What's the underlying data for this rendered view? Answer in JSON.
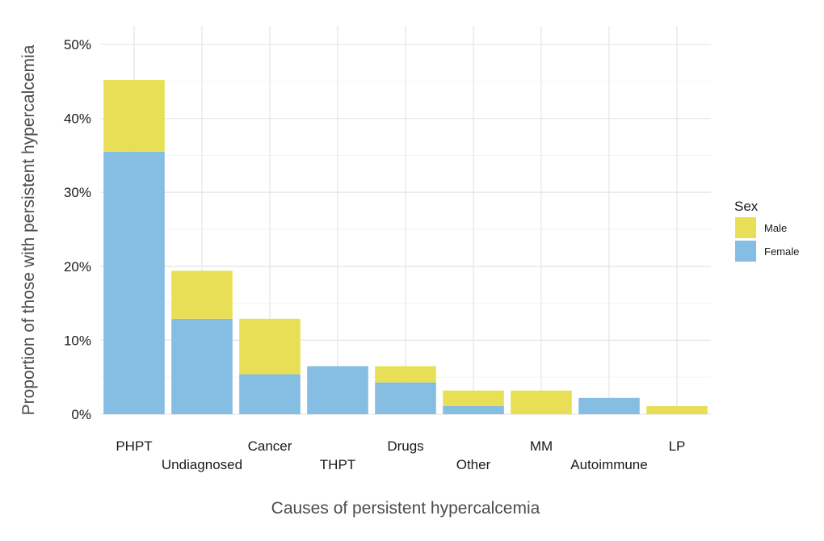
{
  "chart_data": {
    "type": "bar",
    "stacked": true,
    "title": "",
    "xlabel": "Causes of persistent hypercalcemia",
    "ylabel": "Proportion of those with persistent hypercalcemia",
    "categories": [
      "PHPT",
      "Undiagnosed",
      "Cancer",
      "THPT",
      "Drugs",
      "Other",
      "MM",
      "Autoimmune",
      "LP"
    ],
    "series": [
      {
        "name": "Female",
        "color": "#85BDE3",
        "values": [
          35.5,
          12.9,
          5.4,
          6.5,
          4.3,
          1.1,
          0,
          2.2,
          0
        ]
      },
      {
        "name": "Male",
        "color": "#E8DF57",
        "values": [
          9.7,
          6.5,
          7.5,
          0,
          2.2,
          2.1,
          3.2,
          0,
          1.1
        ]
      }
    ],
    "ylim": [
      0,
      50
    ],
    "yticks": [
      "0%",
      "10%",
      "20%",
      "30%",
      "40%",
      "50%"
    ],
    "grid": true,
    "legend": {
      "title": "Sex",
      "position": "right",
      "entries": [
        {
          "label": "Male",
          "color": "#E8DF57"
        },
        {
          "label": "Female",
          "color": "#85BDE3"
        }
      ]
    }
  }
}
